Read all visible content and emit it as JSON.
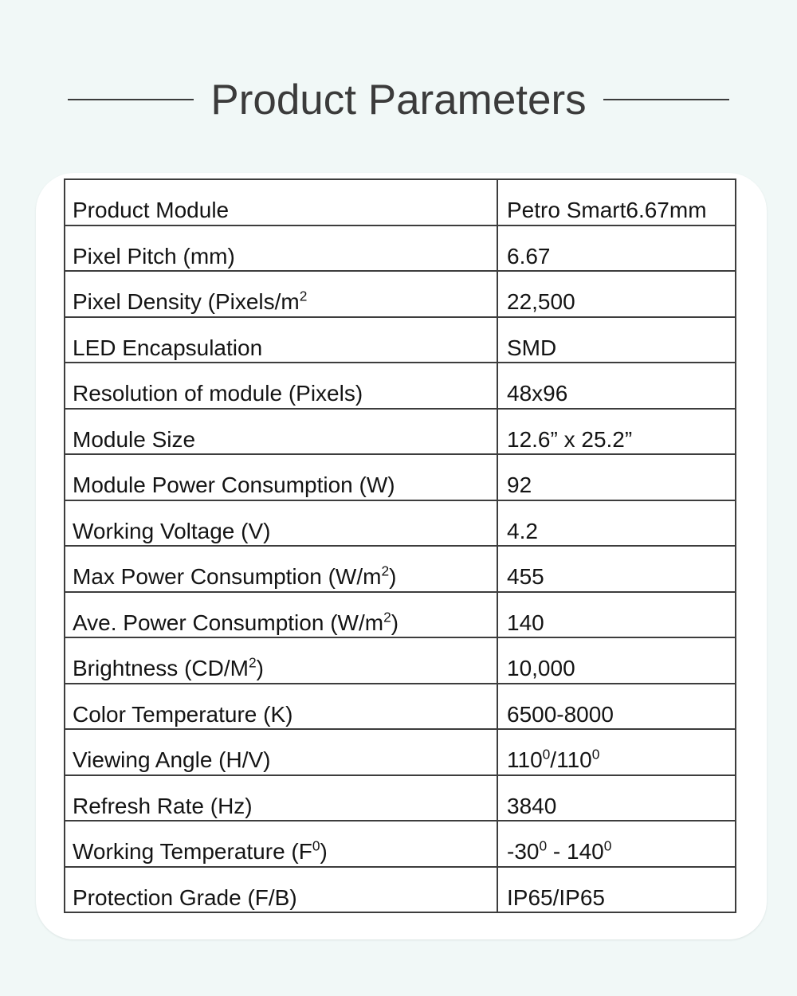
{
  "colors": {
    "background": "#f1f8f7",
    "card": "#ffffff",
    "title": "#3b3b3b",
    "table_border": "#3d3d3d",
    "text": "#141414"
  },
  "header": {
    "title": "Product Parameters"
  },
  "spec_table": {
    "rows": [
      {
        "label": [
          "Product Module"
        ],
        "value": [
          "Petro Smart6.67mm"
        ]
      },
      {
        "label": [
          "Pixel Pitch (mm)"
        ],
        "value": [
          "6.67"
        ]
      },
      {
        "label": [
          "Pixel Density (Pixels/m",
          {
            "sup": "2"
          }
        ],
        "value": [
          "22,500"
        ]
      },
      {
        "label": [
          "LED Encapsulation"
        ],
        "value": [
          "SMD"
        ]
      },
      {
        "label": [
          "Resolution of module (Pixels)"
        ],
        "value": [
          "48x96"
        ]
      },
      {
        "label": [
          "Module Size"
        ],
        "value": [
          "12.6” x 25.2”"
        ]
      },
      {
        "label": [
          "Module Power Consumption (W)"
        ],
        "value": [
          "92"
        ]
      },
      {
        "label": [
          "Working Voltage (V)"
        ],
        "value": [
          "4.2"
        ]
      },
      {
        "label": [
          "Max Power Consumption (W/m",
          {
            "sup": "2"
          },
          ")"
        ],
        "value": [
          "455"
        ]
      },
      {
        "label": [
          "Ave. Power Consumption (W/m",
          {
            "sup": "2"
          },
          ")"
        ],
        "value": [
          "140"
        ]
      },
      {
        "label": [
          "Brightness (CD/M",
          {
            "sup": "2"
          },
          ")"
        ],
        "value": [
          "10,000"
        ]
      },
      {
        "label": [
          "Color Temperature (K)"
        ],
        "value": [
          "6500-8000"
        ]
      },
      {
        "label": [
          "Viewing Angle (H/V)"
        ],
        "value": [
          "110",
          {
            "sup": "0"
          },
          "/110",
          {
            "sup": "0"
          }
        ]
      },
      {
        "label": [
          "Refresh Rate (Hz)"
        ],
        "value": [
          "3840"
        ]
      },
      {
        "label": [
          "Working Temperature (F",
          {
            "sup": "0"
          },
          ")"
        ],
        "value": [
          "-30",
          {
            "sup": "0"
          },
          " - 140",
          {
            "sup": "0"
          }
        ]
      },
      {
        "label": [
          "Protection Grade (F/B)"
        ],
        "value": [
          "IP65/IP65"
        ]
      }
    ]
  }
}
